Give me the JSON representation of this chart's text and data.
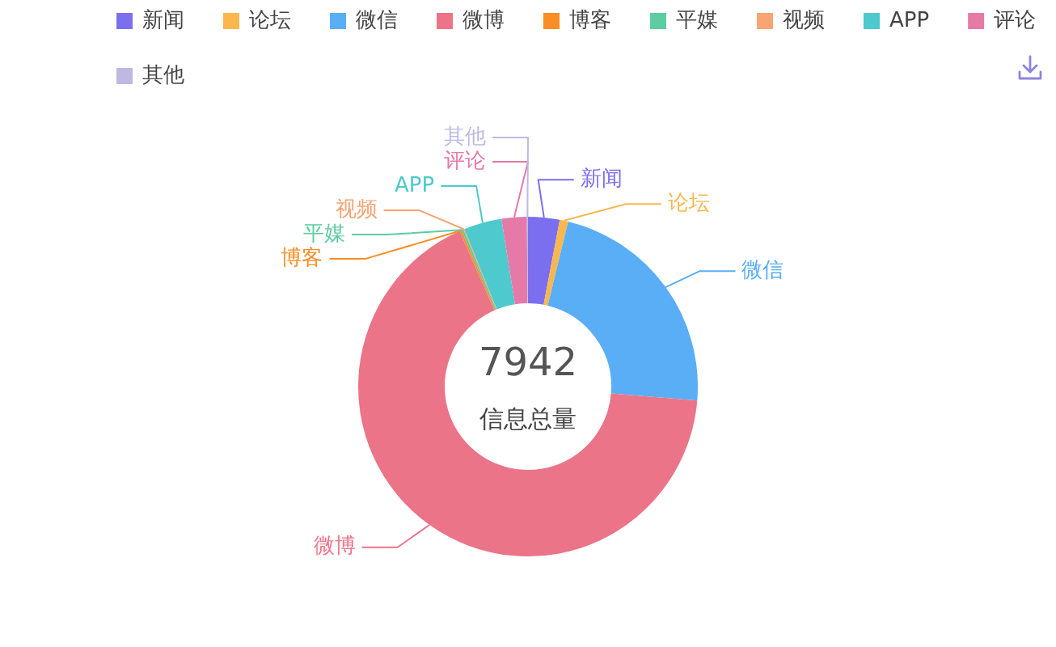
{
  "chart_data": {
    "type": "donut",
    "categories": [
      "新闻",
      "论坛",
      "微信",
      "微博",
      "博客",
      "平媒",
      "视频",
      "APP",
      "评论",
      "其他"
    ],
    "values": [
      3.0,
      0.8,
      22.5,
      67.1,
      0.2,
      0.2,
      0.1,
      3.6,
      2.4,
      0.1
    ],
    "colors": [
      "#7b6ff0",
      "#f9b74e",
      "#5aaef5",
      "#ec7488",
      "#f98e24",
      "#5dcca0",
      "#f8a473",
      "#4ec9cd",
      "#e57aa9",
      "#bdb9e3"
    ],
    "legend": "top",
    "annotations": [
      "7942",
      "信息总量"
    ]
  }
}
